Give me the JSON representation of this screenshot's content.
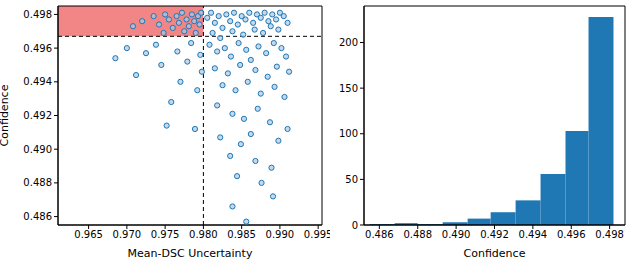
{
  "chart_data": [
    {
      "type": "scatter",
      "x_label": "Mean-DSC Uncertainty",
      "y_label": "Confidence",
      "color": "#1f77b4",
      "marker": "o",
      "xlim": [
        0.961,
        0.9955
      ],
      "ylim": [
        0.4855,
        0.4985
      ],
      "xticks": [
        0.965,
        {
          "value": 0.97,
          "label": "0.970"
        },
        0.975,
        {
          "value": 0.98,
          "label": "0.980"
        },
        0.985,
        {
          "value": 0.99,
          "label": "0.990"
        },
        0.995
      ],
      "yticks": [
        0.486,
        0.488,
        {
          "value": 0.49,
          "label": "0.490"
        },
        0.492,
        0.494,
        0.496,
        0.498
      ],
      "threshold_x": 0.98,
      "threshold_y": 0.4967,
      "x": [
        0.972,
        0.9735,
        0.9742,
        0.975,
        0.9755,
        0.976,
        0.9765,
        0.9768,
        0.9772,
        0.9775,
        0.9778,
        0.9781,
        0.9785,
        0.9788,
        0.979,
        0.9793,
        0.9795,
        0.9797,
        0.9748,
        0.9708,
        0.9685,
        0.97,
        0.9712,
        0.9725,
        0.9738,
        0.9745,
        0.9752,
        0.9758,
        0.9766,
        0.977,
        0.9779,
        0.9784,
        0.9789,
        0.9792,
        0.9796,
        0.9798,
        0.9805,
        0.981,
        0.9815,
        0.982,
        0.9825,
        0.983,
        0.9835,
        0.984,
        0.9845,
        0.985,
        0.9855,
        0.986,
        0.9865,
        0.987,
        0.9875,
        0.988,
        0.9885,
        0.989,
        0.9895,
        0.99,
        0.9905,
        0.991,
        0.9867,
        0.9878,
        0.9852,
        0.9838,
        0.9888,
        0.9898,
        0.9812,
        0.9822,
        0.9808,
        0.9818,
        0.9828,
        0.9836,
        0.9846,
        0.9856,
        0.9862,
        0.9872,
        0.9882,
        0.9892,
        0.9902,
        0.9908,
        0.9815,
        0.9832,
        0.9848,
        0.9868,
        0.9884,
        0.9896,
        0.9912,
        0.9825,
        0.9842,
        0.9858,
        0.9875,
        0.9893,
        0.9906,
        0.9818,
        0.9838,
        0.9853,
        0.9871,
        0.9887,
        0.991,
        0.9822,
        0.9849,
        0.9862,
        0.9898,
        0.9835,
        0.9868,
        0.9889,
        0.9844,
        0.9876,
        0.9838,
        0.9891,
        0.9856
      ],
      "values": [
        0.4976,
        0.4979,
        0.4974,
        0.498,
        0.4977,
        0.4972,
        0.4979,
        0.4975,
        0.4981,
        0.497,
        0.4977,
        0.4973,
        0.498,
        0.4976,
        0.4969,
        0.4979,
        0.4974,
        0.4981,
        0.4969,
        0.4973,
        0.4954,
        0.496,
        0.4944,
        0.4957,
        0.4962,
        0.495,
        0.4914,
        0.4928,
        0.4958,
        0.494,
        0.4952,
        0.4963,
        0.4912,
        0.4935,
        0.4956,
        0.4946,
        0.4978,
        0.4981,
        0.4975,
        0.4979,
        0.4972,
        0.498,
        0.4976,
        0.4981,
        0.4974,
        0.4979,
        0.4977,
        0.4981,
        0.4975,
        0.498,
        0.4978,
        0.4981,
        0.4976,
        0.498,
        0.4977,
        0.4981,
        0.4979,
        0.4975,
        0.4971,
        0.4969,
        0.4968,
        0.497,
        0.4973,
        0.4971,
        0.4969,
        0.4966,
        0.4962,
        0.4958,
        0.496,
        0.4955,
        0.4963,
        0.4959,
        0.4953,
        0.4961,
        0.4957,
        0.4963,
        0.496,
        0.4955,
        0.4948,
        0.4945,
        0.495,
        0.4947,
        0.4943,
        0.4949,
        0.4946,
        0.4938,
        0.4935,
        0.494,
        0.4933,
        0.4937,
        0.4931,
        0.4926,
        0.4921,
        0.4918,
        0.4924,
        0.4916,
        0.4912,
        0.4907,
        0.4903,
        0.4909,
        0.4905,
        0.4896,
        0.4893,
        0.4889,
        0.4884,
        0.488,
        0.4866,
        0.4872,
        0.4857
      ]
    },
    {
      "type": "histogram",
      "x_label": "Confidence",
      "color": "#1f77b4",
      "xlim": [
        0.4852,
        0.4988
      ],
      "ylim": [
        0,
        240
      ],
      "xticks": [
        0.486,
        0.488,
        {
          "value": 0.49,
          "label": "0.490"
        },
        0.492,
        0.494,
        0.496,
        0.498
      ],
      "yticks": [
        0,
        50,
        100,
        150,
        200
      ],
      "bins": [
        0.4855,
        0.4868,
        0.488,
        0.4893,
        0.4906,
        0.4918,
        0.4931,
        0.4944,
        0.4957,
        0.4969,
        0.4982
      ],
      "values": [
        1,
        2,
        1,
        3,
        7,
        14,
        27,
        56,
        103,
        228
      ]
    }
  ]
}
